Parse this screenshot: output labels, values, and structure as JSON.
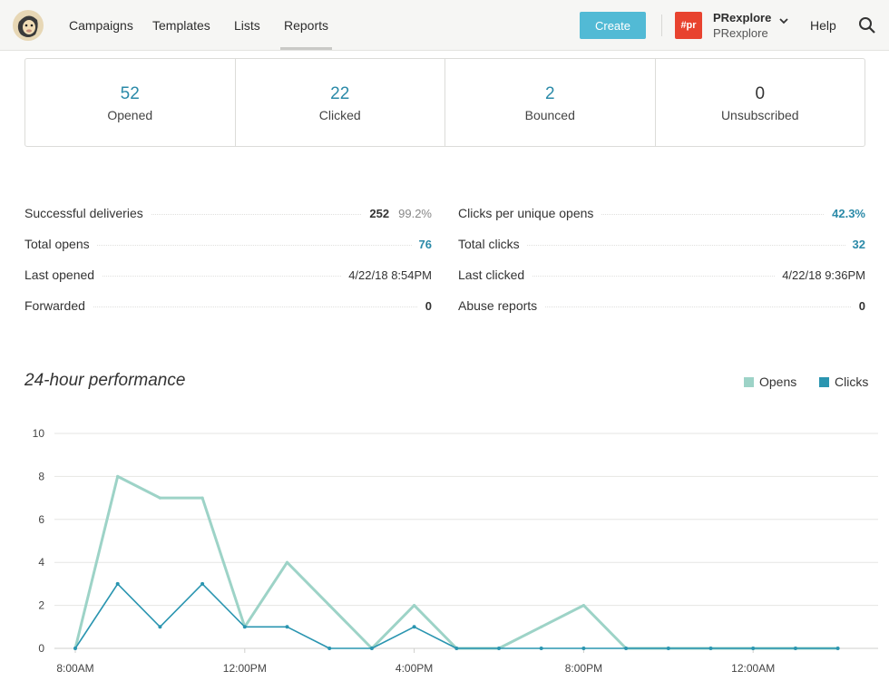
{
  "nav": {
    "items": [
      "Campaigns",
      "Templates",
      "Lists",
      "Reports"
    ],
    "create_label": "Create",
    "account_badge": "#pr",
    "account_name": "PRexplore",
    "account_sub": "PRexplore",
    "help_label": "Help",
    "search_icon": "search-icon",
    "logo_icon": "mailchimp-logo"
  },
  "stats": [
    {
      "value": "52",
      "label": "Opened"
    },
    {
      "value": "22",
      "label": "Clicked"
    },
    {
      "value": "2",
      "label": "Bounced"
    },
    {
      "value": "0",
      "label": "Unsubscribed"
    }
  ],
  "metrics_left": [
    {
      "label": "Successful deliveries",
      "value": "252",
      "extra": "99.2%"
    },
    {
      "label": "Total opens",
      "value": "76",
      "link": true
    },
    {
      "label": "Last opened",
      "value": "4/22/18 8:54PM"
    },
    {
      "label": "Forwarded",
      "value": "0"
    }
  ],
  "metrics_right": [
    {
      "label": "Clicks per unique opens",
      "value": "42.3%",
      "link": true
    },
    {
      "label": "Total clicks",
      "value": "32",
      "link": true
    },
    {
      "label": "Last clicked",
      "value": "4/22/18 9:36PM"
    },
    {
      "label": "Abuse reports",
      "value": "0"
    }
  ],
  "colors": {
    "accent": "#2b8aa8",
    "opens": "#9dd3c7",
    "clicks": "#2a95b0",
    "create": "#52bad5",
    "badge": "#e8432f"
  },
  "chart_data": {
    "type": "line",
    "title": "24-hour performance",
    "legend": [
      "Opens",
      "Clicks"
    ],
    "legend_position": "top-right",
    "y_ticks": [
      0,
      2,
      4,
      6,
      8,
      10
    ],
    "ylim": [
      0,
      10
    ],
    "x_tick_labels": [
      "8:00AM",
      "12:00PM",
      "4:00PM",
      "8:00PM",
      "12:00AM"
    ],
    "x_tick_indices": [
      0,
      4,
      8,
      12,
      16
    ],
    "points_count": 19,
    "series": [
      {
        "name": "Opens",
        "values": [
          0,
          8,
          7,
          7,
          1,
          4,
          2,
          0,
          2,
          0,
          0,
          1,
          2,
          0,
          0,
          0,
          0,
          0,
          0
        ]
      },
      {
        "name": "Clicks",
        "values": [
          0,
          3,
          1,
          3,
          1,
          1,
          0,
          0,
          1,
          0,
          0,
          0,
          0,
          0,
          0,
          0,
          0,
          0,
          0
        ]
      }
    ]
  }
}
